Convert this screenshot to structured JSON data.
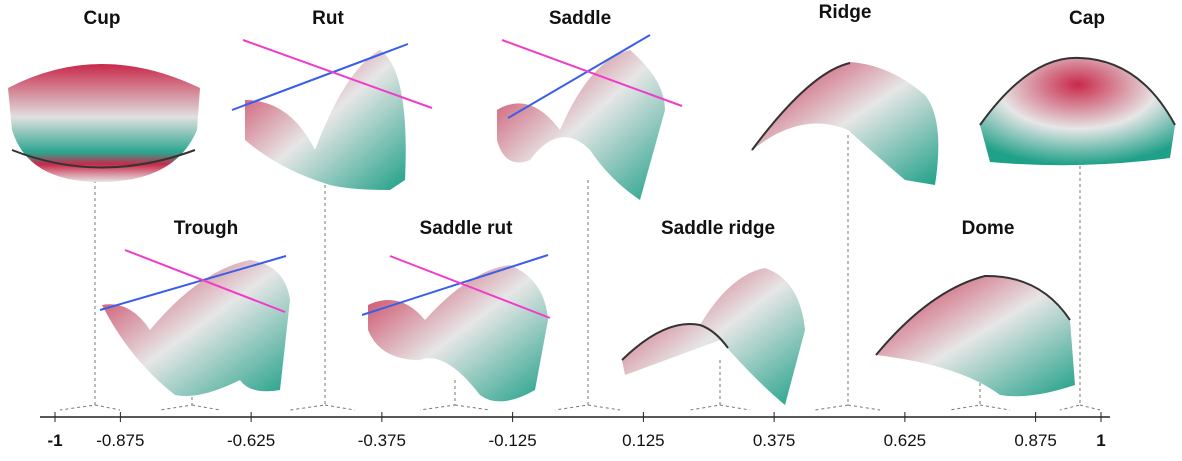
{
  "top_row": [
    "Cup",
    "Rut",
    "Saddle",
    "Ridge",
    "Cap"
  ],
  "bottom_row": [
    "Trough",
    "Saddle rut",
    "Saddle ridge",
    "Dome"
  ],
  "axis": {
    "ticks": [
      "-1",
      "-0.875",
      "-0.625",
      "-0.375",
      "-0.125",
      "0.125",
      "0.375",
      "0.625",
      "0.875",
      "1"
    ]
  }
}
